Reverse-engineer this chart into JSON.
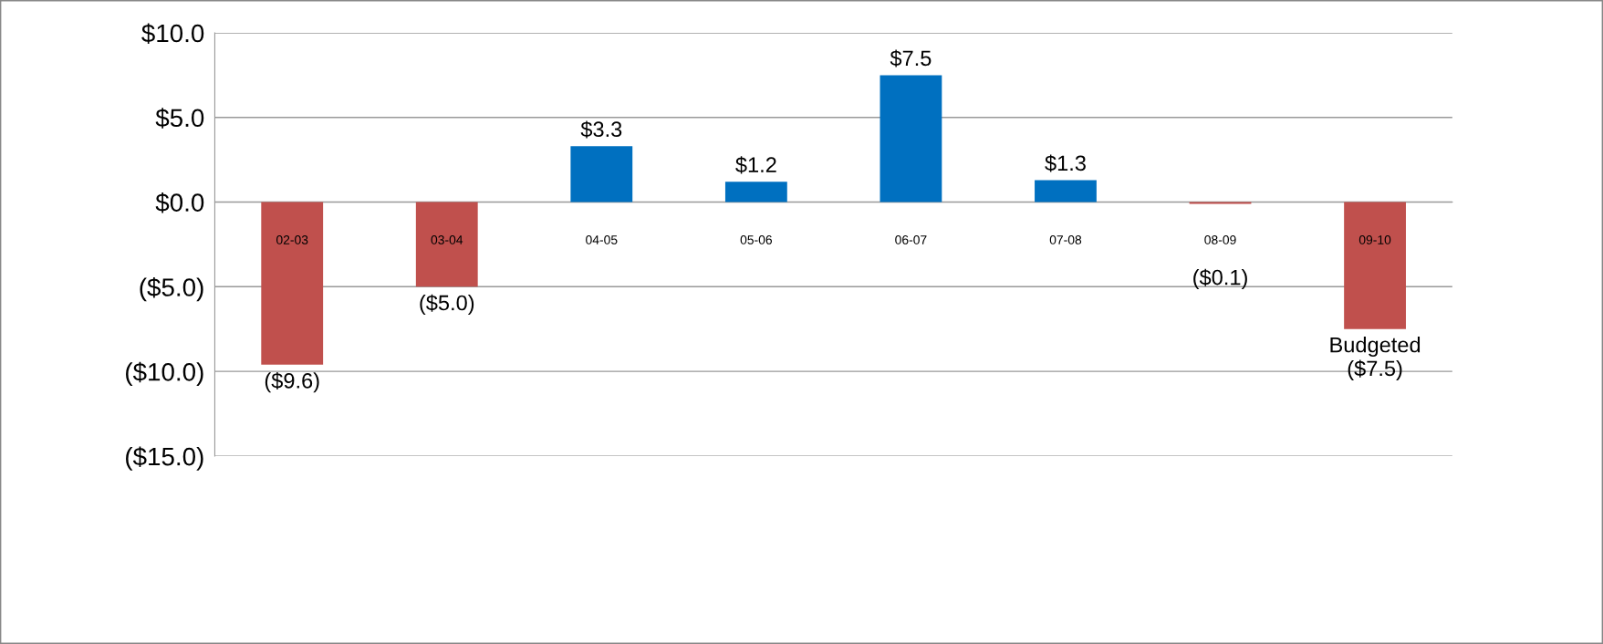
{
  "chart_data": {
    "type": "bar",
    "categories": [
      "02-03",
      "03-04",
      "04-05",
      "05-06",
      "06-07",
      "07-08",
      "08-09",
      "09-10"
    ],
    "values": [
      -9.6,
      -5.0,
      3.3,
      1.2,
      7.5,
      1.3,
      -0.1,
      -7.5
    ],
    "colors": [
      "#c0504d",
      "#c0504d",
      "#0070c0",
      "#0070c0",
      "#0070c0",
      "#0070c0",
      "#c0504d",
      "#c0504d"
    ],
    "value_labels": [
      "($9.6)",
      "($5.0)",
      "$3.3",
      "$1.2",
      "$7.5",
      "$1.3",
      "($0.1)",
      "Budgeted\n($7.5)"
    ],
    "ylim": [
      -15,
      10
    ],
    "yticks": [
      {
        "value": -15,
        "label": "($15.0)"
      },
      {
        "value": -10,
        "label": "($10.0)"
      },
      {
        "value": -5,
        "label": "($5.0)"
      },
      {
        "value": 0,
        "label": "$0.0"
      },
      {
        "value": 5,
        "label": "$5.0"
      },
      {
        "value": 10,
        "label": "$10.0"
      }
    ],
    "grid": "y",
    "legend": false
  }
}
